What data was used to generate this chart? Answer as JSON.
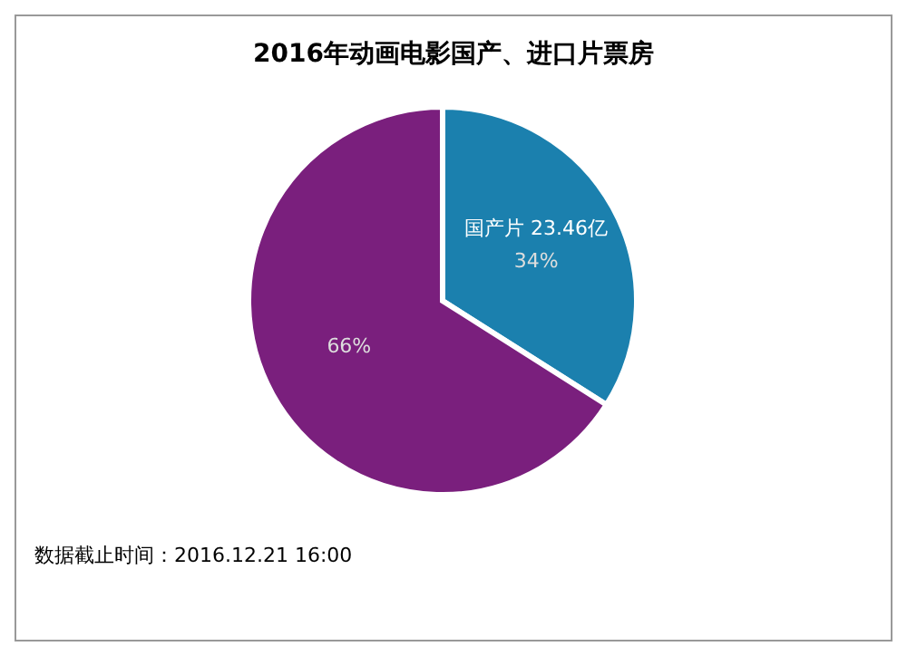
{
  "chart_data": {
    "type": "pie",
    "title": "2016年动画电影国产、进口片票房",
    "categories": [
      "国产片 23.46亿",
      null
    ],
    "values": [
      34,
      66
    ],
    "colors": [
      "#1b80ae",
      "#7a1f7d"
    ],
    "value_labels": [
      "34%",
      "66%"
    ],
    "annotations": [
      "数据截止时间：2016.12.21 16:00"
    ]
  }
}
